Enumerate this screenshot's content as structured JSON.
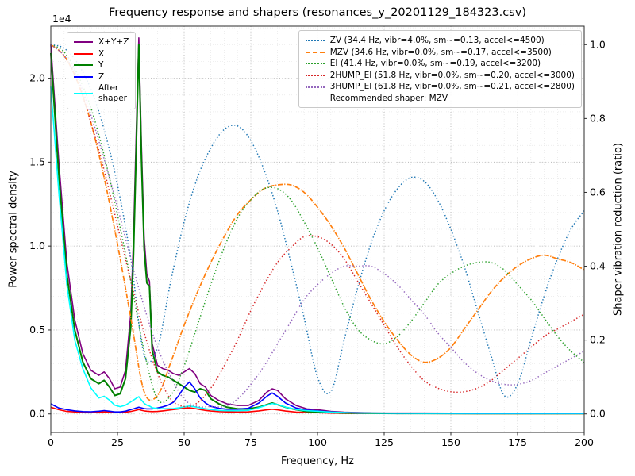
{
  "chart_data": {
    "type": "line",
    "title": "Frequency response and shapers (resonances_y_20201129_184323.csv)",
    "xlabel": "Frequency, Hz",
    "ylabel_left": "Power spectral density",
    "ylabel_right": "Shaper vibration reduction (ratio)",
    "y_left_offset_label": "1e4",
    "recommended_note": "Recommended shaper: MZV",
    "grid": true,
    "grid_major_color": "#b9b9b9",
    "grid_minor_color": "#e8e8e8",
    "xlim": [
      0,
      200
    ],
    "ylim_left": [
      -1100,
      23100
    ],
    "ylim_right": [
      -0.05,
      1.05
    ],
    "x_minor_step": 5,
    "y_left_minor_step": 1000,
    "x_tick_values": [
      0,
      25,
      50,
      75,
      100,
      125,
      150,
      175,
      200
    ],
    "x_tick_labels": [
      "0",
      "25",
      "50",
      "75",
      "100",
      "125",
      "150",
      "175",
      "200"
    ],
    "y_left_tick_values": [
      0,
      5000,
      10000,
      15000,
      20000
    ],
    "y_left_tick_labels": [
      "0.0",
      "0.5",
      "1.0",
      "1.5",
      "2.0"
    ],
    "y_right_tick_values": [
      0,
      0.2,
      0.4,
      0.6,
      0.8,
      1.0
    ],
    "y_right_tick_labels": [
      "0.0",
      "0.2",
      "0.4",
      "0.6",
      "0.8",
      "1.0"
    ],
    "x_psd": [
      0,
      3,
      6,
      9,
      12,
      15,
      18,
      20,
      22,
      24,
      26,
      28,
      30,
      31,
      32,
      33,
      34,
      35,
      36,
      37,
      38,
      40,
      42,
      44,
      46,
      48,
      50,
      52,
      54,
      56,
      58,
      60,
      63,
      66,
      70,
      74,
      78,
      81,
      83,
      85,
      88,
      92,
      96,
      100,
      105,
      110,
      115,
      120,
      130,
      140,
      160,
      180,
      200
    ],
    "psd_series": [
      {
        "name": "X+Y+Z",
        "legend_label": "X+Y+Z",
        "color": "#800080",
        "style": "solid",
        "width": 1.6,
        "values": [
          22000,
          15000,
          9000,
          5600,
          3600,
          2600,
          2300,
          2500,
          2100,
          1500,
          1600,
          2600,
          6000,
          10500,
          16500,
          22400,
          16000,
          10500,
          8300,
          7900,
          4200,
          2900,
          2700,
          2600,
          2400,
          2300,
          2500,
          2700,
          2400,
          1800,
          1600,
          1100,
          800,
          600,
          500,
          500,
          800,
          1300,
          1500,
          1400,
          900,
          500,
          300,
          250,
          150,
          100,
          80,
          60,
          50,
          50,
          40,
          40,
          40
        ]
      },
      {
        "name": "X",
        "legend_label": "X",
        "color": "#ff0000",
        "style": "solid",
        "width": 1.6,
        "values": [
          400,
          250,
          150,
          120,
          100,
          90,
          100,
          120,
          100,
          90,
          90,
          100,
          150,
          180,
          220,
          260,
          220,
          180,
          160,
          150,
          140,
          150,
          180,
          220,
          260,
          300,
          340,
          360,
          320,
          260,
          210,
          170,
          140,
          120,
          110,
          120,
          180,
          240,
          280,
          240,
          170,
          110,
          80,
          70,
          50,
          40,
          35,
          30,
          25,
          25,
          20,
          20,
          20
        ]
      },
      {
        "name": "Y",
        "legend_label": "Y",
        "color": "#008000",
        "style": "solid",
        "width": 2.0,
        "values": [
          21500,
          14200,
          8300,
          5000,
          3100,
          2100,
          1800,
          2000,
          1600,
          1100,
          1200,
          2100,
          5200,
          9500,
          15500,
          22000,
          15200,
          9800,
          7800,
          7600,
          3800,
          2500,
          2300,
          2200,
          2000,
          1800,
          1600,
          1400,
          1300,
          1500,
          1400,
          900,
          600,
          400,
          300,
          300,
          400,
          550,
          650,
          550,
          400,
          250,
          150,
          120,
          80,
          60,
          50,
          40,
          30,
          30,
          20,
          20,
          20
        ]
      },
      {
        "name": "Z",
        "legend_label": "Z",
        "color": "#0000ff",
        "style": "solid",
        "width": 1.6,
        "values": [
          600,
          350,
          250,
          180,
          140,
          130,
          160,
          200,
          160,
          120,
          120,
          160,
          260,
          300,
          350,
          400,
          360,
          320,
          300,
          300,
          300,
          350,
          420,
          520,
          700,
          1100,
          1600,
          1900,
          1500,
          950,
          650,
          450,
          330,
          280,
          280,
          330,
          650,
          1050,
          1250,
          1050,
          650,
          350,
          230,
          180,
          120,
          80,
          60,
          50,
          40,
          35,
          25,
          25,
          25
        ]
      },
      {
        "name": "After shaper",
        "legend_label": "After\nshaper",
        "color": "#00ffff",
        "style": "solid",
        "width": 1.6,
        "values": [
          19500,
          13200,
          7700,
          4400,
          2700,
          1550,
          950,
          1050,
          820,
          520,
          430,
          520,
          720,
          820,
          930,
          1020,
          830,
          630,
          520,
          470,
          370,
          320,
          310,
          310,
          320,
          360,
          420,
          470,
          420,
          360,
          310,
          260,
          210,
          190,
          190,
          210,
          370,
          520,
          620,
          560,
          410,
          260,
          190,
          160,
          110,
          80,
          60,
          50,
          45,
          40,
          35,
          35,
          35
        ]
      }
    ],
    "x_shaper": [
      0,
      5,
      10,
      15,
      20,
      25,
      30,
      35,
      40,
      45,
      50,
      55,
      60,
      65,
      70,
      75,
      80,
      85,
      90,
      95,
      100,
      105,
      110,
      115,
      120,
      125,
      130,
      135,
      140,
      145,
      150,
      155,
      160,
      165,
      170,
      175,
      180,
      185,
      190,
      195,
      200
    ],
    "shaper_series": [
      {
        "name": "ZV",
        "label": "ZV (34.4 Hz, vibr=4.0%, sm~=0.13, accel<=4500)",
        "color": "#1f77b4",
        "style": "dotted",
        "width": 1.5,
        "values": [
          1.0,
          0.99,
          0.95,
          0.88,
          0.77,
          0.62,
          0.42,
          0.16,
          0.18,
          0.36,
          0.52,
          0.64,
          0.72,
          0.77,
          0.78,
          0.74,
          0.66,
          0.55,
          0.41,
          0.26,
          0.1,
          0.06,
          0.2,
          0.34,
          0.46,
          0.55,
          0.61,
          0.64,
          0.63,
          0.58,
          0.5,
          0.4,
          0.28,
          0.16,
          0.05,
          0.08,
          0.2,
          0.32,
          0.42,
          0.5,
          0.55
        ]
      },
      {
        "name": "MZV",
        "label": "MZV (34.6 Hz, vibr=0.0%, sm~=0.17, accel<=3500)",
        "color": "#ff7f0e",
        "style": "dashdot",
        "width": 1.7,
        "values": [
          1.0,
          0.97,
          0.9,
          0.79,
          0.64,
          0.46,
          0.26,
          0.06,
          0.05,
          0.14,
          0.24,
          0.33,
          0.41,
          0.48,
          0.54,
          0.58,
          0.61,
          0.62,
          0.62,
          0.6,
          0.56,
          0.51,
          0.45,
          0.38,
          0.31,
          0.25,
          0.2,
          0.16,
          0.14,
          0.15,
          0.18,
          0.23,
          0.28,
          0.33,
          0.37,
          0.4,
          0.42,
          0.43,
          0.42,
          0.41,
          0.39
        ]
      },
      {
        "name": "EI",
        "label": "EI (41.4 Hz, vibr=0.0%, sm~=0.19, accel<=3200)",
        "color": "#2ca02c",
        "style": "dotted",
        "width": 1.5,
        "values": [
          1.0,
          0.98,
          0.92,
          0.83,
          0.7,
          0.54,
          0.36,
          0.17,
          0.04,
          0.05,
          0.13,
          0.24,
          0.35,
          0.45,
          0.53,
          0.58,
          0.61,
          0.61,
          0.58,
          0.52,
          0.45,
          0.37,
          0.29,
          0.23,
          0.2,
          0.19,
          0.21,
          0.25,
          0.3,
          0.35,
          0.38,
          0.4,
          0.41,
          0.41,
          0.39,
          0.35,
          0.31,
          0.26,
          0.21,
          0.17,
          0.14
        ]
      },
      {
        "name": "2HUMP_EI",
        "label": "2HUMP_EI (51.8 Hz, vibr=0.0%, sm~=0.20, accel<=3000)",
        "color": "#d62728",
        "style": "dotted",
        "width": 1.5,
        "values": [
          1.0,
          0.97,
          0.9,
          0.79,
          0.66,
          0.51,
          0.36,
          0.22,
          0.11,
          0.04,
          0.02,
          0.03,
          0.07,
          0.13,
          0.2,
          0.28,
          0.35,
          0.41,
          0.45,
          0.48,
          0.48,
          0.46,
          0.42,
          0.36,
          0.3,
          0.24,
          0.18,
          0.13,
          0.09,
          0.07,
          0.06,
          0.06,
          0.07,
          0.09,
          0.12,
          0.15,
          0.18,
          0.21,
          0.23,
          0.25,
          0.27
        ]
      },
      {
        "name": "3HUMP_EI",
        "label": "3HUMP_EI (61.8 Hz, vibr=0.0%, sm~=0.21, accel<=2800)",
        "color": "#9467bd",
        "style": "dotted",
        "width": 1.5,
        "values": [
          1.0,
          0.97,
          0.91,
          0.81,
          0.69,
          0.56,
          0.42,
          0.29,
          0.18,
          0.1,
          0.04,
          0.02,
          0.02,
          0.02,
          0.04,
          0.08,
          0.13,
          0.19,
          0.25,
          0.31,
          0.35,
          0.38,
          0.4,
          0.4,
          0.4,
          0.38,
          0.35,
          0.31,
          0.27,
          0.22,
          0.18,
          0.14,
          0.11,
          0.09,
          0.08,
          0.08,
          0.09,
          0.11,
          0.13,
          0.15,
          0.17
        ]
      }
    ]
  }
}
